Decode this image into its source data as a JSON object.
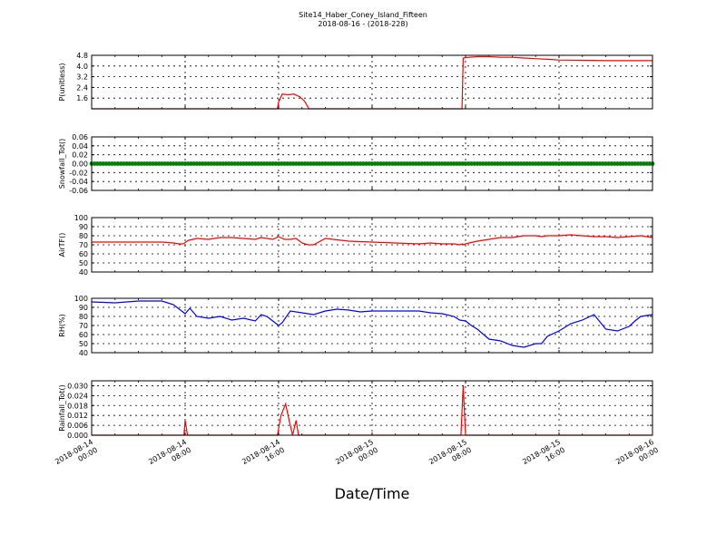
{
  "figure": {
    "title_line1": "Site14_Haber_Coney_Island_Fifteen",
    "title_line2": "2018-08-16 - (2018-228)",
    "xlabel": "Date/Time"
  },
  "chart_data": {
    "type": "line",
    "x_ticks": [
      {
        "line1": "2018-08-14",
        "line2": "00:00"
      },
      {
        "line1": "2018-08-14",
        "line2": "08:00"
      },
      {
        "line1": "2018-08-14",
        "line2": "16:00"
      },
      {
        "line1": "2018-08-15",
        "line2": "00:00"
      },
      {
        "line1": "2018-08-15",
        "line2": "08:00"
      },
      {
        "line1": "2018-08-15",
        "line2": "16:00"
      },
      {
        "line1": "2018-08-16",
        "line2": "00:00"
      }
    ],
    "x_range_hours": [
      0,
      48
    ],
    "grid": true,
    "panels": [
      {
        "ylabel": "P(unitless)",
        "ylim": [
          0.8,
          4.8
        ],
        "yticks": [
          "1.6",
          "2.4",
          "3.2",
          "4.0",
          "4.8"
        ],
        "ytick_values": [
          1.6,
          2.4,
          3.2,
          4.0,
          4.8
        ],
        "color": "#ff0000",
        "style": "line",
        "x": [
          0,
          15.9,
          16.0,
          16.3,
          16.8,
          17.3,
          17.8,
          18.2,
          18.6,
          31.7,
          31.8,
          32.3,
          33.0,
          34.0,
          35.0,
          36.0,
          37.0,
          38.0,
          39.0,
          40.0,
          42.0,
          44.0,
          46.0,
          48.0
        ],
        "y": [
          0.8,
          0.8,
          1.3,
          1.9,
          1.85,
          1.9,
          1.7,
          1.4,
          0.8,
          0.8,
          4.6,
          4.65,
          4.7,
          4.7,
          4.65,
          4.65,
          4.6,
          4.55,
          4.5,
          4.45,
          4.43,
          4.4,
          4.4,
          4.4
        ]
      },
      {
        "ylabel": "Snowfall_Tot()",
        "ylim": [
          -0.06,
          0.06
        ],
        "yticks": [
          "-0.06",
          "-0.04",
          "-0.02",
          "0.00",
          "0.02",
          "0.04",
          "0.06"
        ],
        "ytick_values": [
          -0.06,
          -0.04,
          -0.02,
          0.0,
          0.02,
          0.04,
          0.06
        ],
        "color": "#008000",
        "style": "markers",
        "x": [
          0,
          48
        ],
        "y": [
          0.0,
          0.0
        ]
      },
      {
        "ylabel": "AirTF()",
        "ylim": [
          40,
          100
        ],
        "yticks": [
          "40",
          "50",
          "60",
          "70",
          "80",
          "90",
          "100"
        ],
        "ytick_values": [
          40,
          50,
          60,
          70,
          80,
          90,
          100
        ],
        "color": "#ff0000",
        "style": "line",
        "x": [
          0,
          2,
          4,
          6,
          7,
          7.5,
          7.8,
          7.95,
          8.05,
          8.3,
          9,
          10,
          11,
          12,
          13,
          14,
          14.5,
          15,
          15.5,
          16,
          16.5,
          17,
          17.5,
          18,
          18.5,
          19,
          20,
          22,
          24,
          26,
          28,
          29,
          30,
          31,
          31.5,
          31.75,
          31.85,
          32.0,
          32.3,
          33,
          34,
          35,
          36,
          37,
          38,
          38.5,
          39,
          40,
          41,
          42,
          43,
          44,
          45,
          46,
          47,
          47.5,
          48
        ],
        "y": [
          73,
          73,
          73,
          73,
          72,
          71,
          71,
          72,
          73,
          75,
          77,
          76,
          78,
          78,
          77,
          76,
          78,
          77,
          76,
          79,
          76,
          76,
          77,
          72,
          70,
          70,
          77,
          74,
          73,
          72,
          71,
          72,
          71,
          71,
          70,
          71,
          70,
          71,
          72,
          74,
          76,
          78,
          78,
          80,
          80,
          79,
          80,
          80,
          81,
          80,
          79,
          79,
          78,
          79,
          80,
          79,
          78
        ],
        "x_full": true
      },
      {
        "ylabel": "RH(%)",
        "ylim": [
          40,
          100
        ],
        "yticks": [
          "40",
          "50",
          "60",
          "70",
          "80",
          "90",
          "100"
        ],
        "ytick_values": [
          40,
          50,
          60,
          70,
          80,
          90,
          100
        ],
        "color": "#0000ff",
        "style": "line"
      },
      {
        "ylabel": "Rainfall_Tot()",
        "ylim": [
          0.0,
          0.033
        ],
        "yticks": [
          "0.000",
          "0.006",
          "0.012",
          "0.018",
          "0.024",
          "0.030"
        ],
        "ytick_values": [
          0.0,
          0.006,
          0.012,
          0.018,
          0.024,
          0.03
        ],
        "color": "#ff0000",
        "style": "line",
        "x": [
          0,
          7.9,
          8.0,
          8.2,
          15.9,
          16.2,
          16.6,
          16.9,
          17.2,
          17.5,
          17.7,
          31.6,
          31.8,
          32.0,
          48
        ],
        "y": [
          0,
          0,
          0.009,
          0,
          0,
          0.012,
          0.019,
          0.009,
          0,
          0.009,
          0,
          0,
          0.03,
          0,
          0
        ]
      }
    ]
  }
}
